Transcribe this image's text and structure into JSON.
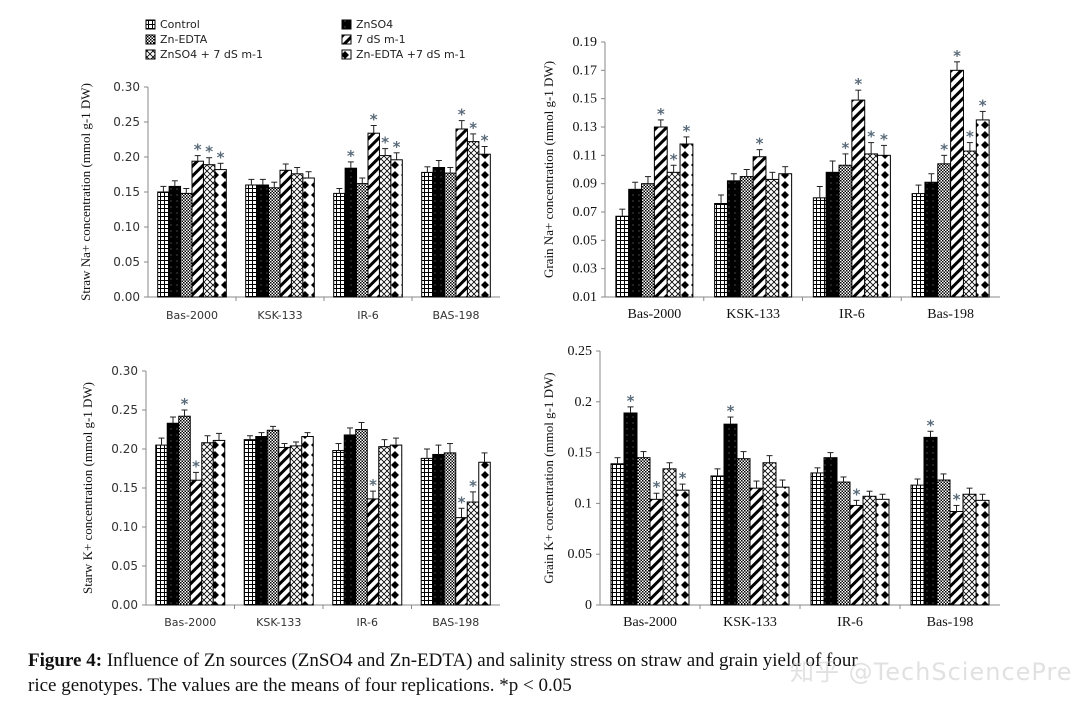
{
  "legend": {
    "items": [
      {
        "label": "Control",
        "pattern": "grid"
      },
      {
        "label": "ZnSO4",
        "pattern": "dotted-black"
      },
      {
        "label": "Zn-EDTA",
        "pattern": "checker"
      },
      {
        "label": "7 dS m-1",
        "pattern": "diagonal"
      },
      {
        "label": "ZnSO4 + 7 dS m-1",
        "pattern": "crosshatch"
      },
      {
        "label": "Zn-EDTA +7 dS m-1",
        "pattern": "diamond"
      }
    ]
  },
  "chart_data": [
    {
      "id": "straw-na",
      "type": "bar",
      "ylabel": "Straw Na+ concentration (mmol g-1 DW)",
      "categories": [
        "Bas-2000",
        "KSK-133",
        "IR-6",
        "BAS-198"
      ],
      "ylim": [
        0,
        0.3
      ],
      "yticks": [
        "0.00",
        "0.05",
        "0.10",
        "0.15",
        "0.20",
        "0.25",
        "0.30"
      ],
      "series": [
        {
          "name": "Control",
          "values": [
            0.15,
            0.16,
            0.148,
            0.178
          ],
          "errors": [
            0.008,
            0.008,
            0.007,
            0.008
          ],
          "sig": [
            false,
            false,
            false,
            false
          ]
        },
        {
          "name": "ZnSO4",
          "values": [
            0.158,
            0.16,
            0.184,
            0.185
          ],
          "errors": [
            0.008,
            0.008,
            0.009,
            0.01
          ],
          "sig": [
            false,
            false,
            true,
            false
          ]
        },
        {
          "name": "Zn-EDTA",
          "values": [
            0.148,
            0.156,
            0.162,
            0.177
          ],
          "errors": [
            0.007,
            0.008,
            0.008,
            0.008
          ],
          "sig": [
            false,
            false,
            false,
            false
          ]
        },
        {
          "name": "7 dS m-1",
          "values": [
            0.194,
            0.181,
            0.234,
            0.24
          ],
          "errors": [
            0.008,
            0.009,
            0.011,
            0.012
          ],
          "sig": [
            true,
            false,
            true,
            true
          ]
        },
        {
          "name": "ZnSO4 + 7 dS m-1",
          "values": [
            0.189,
            0.176,
            0.202,
            0.222
          ],
          "errors": [
            0.01,
            0.009,
            0.01,
            0.011
          ],
          "sig": [
            true,
            false,
            true,
            true
          ]
        },
        {
          "name": "Zn-EDTA +7 dS m-1",
          "values": [
            0.182,
            0.17,
            0.196,
            0.204
          ],
          "errors": [
            0.009,
            0.009,
            0.01,
            0.011
          ],
          "sig": [
            true,
            false,
            true,
            true
          ]
        }
      ]
    },
    {
      "id": "grain-na",
      "type": "bar",
      "ylabel": "Grain Na+ concentration (mmol g-1 DW)",
      "categories": [
        "Bas-2000",
        "KSK-133",
        "IR-6",
        "Bas-198"
      ],
      "ylim": [
        0.01,
        0.19
      ],
      "yticks": [
        "0.01",
        "0.03",
        "0.05",
        "0.07",
        "0.09",
        "0.11",
        "0.13",
        "0.15",
        "0.17",
        "0.19"
      ],
      "series": [
        {
          "name": "Control",
          "values": [
            0.067,
            0.076,
            0.08,
            0.083
          ],
          "errors": [
            0.005,
            0.006,
            0.008,
            0.006
          ],
          "sig": [
            false,
            false,
            false,
            false
          ]
        },
        {
          "name": "ZnSO4",
          "values": [
            0.086,
            0.092,
            0.098,
            0.091
          ],
          "errors": [
            0.005,
            0.005,
            0.008,
            0.006
          ],
          "sig": [
            false,
            false,
            false,
            false
          ]
        },
        {
          "name": "Zn-EDTA",
          "values": [
            0.09,
            0.095,
            0.103,
            0.104
          ],
          "errors": [
            0.005,
            0.005,
            0.008,
            0.006
          ],
          "sig": [
            false,
            false,
            true,
            true
          ]
        },
        {
          "name": "7 dS m-1",
          "values": [
            0.13,
            0.109,
            0.149,
            0.17
          ],
          "errors": [
            0.005,
            0.005,
            0.007,
            0.006
          ],
          "sig": [
            true,
            true,
            true,
            true
          ]
        },
        {
          "name": "ZnSO4 + 7 dS m-1",
          "values": [
            0.098,
            0.093,
            0.111,
            0.113
          ],
          "errors": [
            0.005,
            0.005,
            0.008,
            0.006
          ],
          "sig": [
            true,
            false,
            true,
            true
          ]
        },
        {
          "name": "Zn-EDTA +7 dS m-1",
          "values": [
            0.118,
            0.097,
            0.11,
            0.135
          ],
          "errors": [
            0.005,
            0.005,
            0.007,
            0.006
          ],
          "sig": [
            true,
            false,
            true,
            true
          ]
        }
      ]
    },
    {
      "id": "straw-k",
      "type": "bar",
      "ylabel": "Starw K+ concentration (mmol g-1 DW)",
      "categories": [
        "Bas-2000",
        "KSK-133",
        "IR-6",
        "BAS-198"
      ],
      "ylim": [
        0,
        0.3
      ],
      "yticks": [
        "0.00",
        "0.05",
        "0.10",
        "0.15",
        "0.20",
        "0.25",
        "0.30"
      ],
      "series": [
        {
          "name": "Control",
          "values": [
            0.205,
            0.212,
            0.198,
            0.188
          ],
          "errors": [
            0.009,
            0.005,
            0.009,
            0.012
          ],
          "sig": [
            false,
            false,
            false,
            false
          ]
        },
        {
          "name": "ZnSO4",
          "values": [
            0.233,
            0.216,
            0.218,
            0.193
          ],
          "errors": [
            0.008,
            0.005,
            0.009,
            0.012
          ],
          "sig": [
            false,
            false,
            false,
            false
          ]
        },
        {
          "name": "Zn-EDTA",
          "values": [
            0.242,
            0.224,
            0.225,
            0.195
          ],
          "errors": [
            0.008,
            0.005,
            0.009,
            0.012
          ],
          "sig": [
            true,
            false,
            false,
            false
          ]
        },
        {
          "name": "7 dS m-1",
          "values": [
            0.16,
            0.202,
            0.136,
            0.112
          ],
          "errors": [
            0.01,
            0.005,
            0.01,
            0.012
          ],
          "sig": [
            true,
            false,
            true,
            true
          ]
        },
        {
          "name": "ZnSO4 + 7 dS m-1",
          "values": [
            0.208,
            0.204,
            0.203,
            0.132
          ],
          "errors": [
            0.009,
            0.005,
            0.009,
            0.013
          ],
          "sig": [
            false,
            false,
            false,
            true
          ]
        },
        {
          "name": "Zn-EDTA +7 dS m-1",
          "values": [
            0.211,
            0.216,
            0.205,
            0.183
          ],
          "errors": [
            0.009,
            0.005,
            0.009,
            0.012
          ],
          "sig": [
            false,
            false,
            false,
            false
          ]
        }
      ]
    },
    {
      "id": "grain-k",
      "type": "bar",
      "ylabel": "Grain K+ concentration (mmol g-1 DW)",
      "categories": [
        "Bas-2000",
        "KSK-133",
        "IR-6",
        "Bas-198"
      ],
      "ylim": [
        0,
        0.25
      ],
      "yticks": [
        "0",
        "0.05",
        "0.1",
        "0.15",
        "0.2",
        "0.25"
      ],
      "series": [
        {
          "name": "Control",
          "values": [
            0.139,
            0.127,
            0.13,
            0.118
          ],
          "errors": [
            0.006,
            0.007,
            0.005,
            0.006
          ],
          "sig": [
            false,
            false,
            false,
            false
          ]
        },
        {
          "name": "ZnSO4",
          "values": [
            0.189,
            0.178,
            0.145,
            0.165
          ],
          "errors": [
            0.006,
            0.007,
            0.005,
            0.006
          ],
          "sig": [
            true,
            true,
            false,
            true
          ]
        },
        {
          "name": "Zn-EDTA",
          "values": [
            0.145,
            0.144,
            0.121,
            0.123
          ],
          "errors": [
            0.006,
            0.007,
            0.005,
            0.006
          ],
          "sig": [
            false,
            false,
            false,
            false
          ]
        },
        {
          "name": "7 dS m-1",
          "values": [
            0.104,
            0.115,
            0.098,
            0.092
          ],
          "errors": [
            0.006,
            0.007,
            0.005,
            0.006
          ],
          "sig": [
            true,
            false,
            true,
            true
          ]
        },
        {
          "name": "ZnSO4 + 7 dS m-1",
          "values": [
            0.134,
            0.14,
            0.107,
            0.109
          ],
          "errors": [
            0.006,
            0.007,
            0.005,
            0.006
          ],
          "sig": [
            false,
            false,
            false,
            false
          ]
        },
        {
          "name": "Zn-EDTA +7 dS m-1",
          "values": [
            0.113,
            0.116,
            0.104,
            0.103
          ],
          "errors": [
            0.006,
            0.007,
            0.005,
            0.006
          ],
          "sig": [
            true,
            false,
            false,
            false
          ]
        }
      ]
    }
  ],
  "caption": {
    "label": "Figure 4:",
    "text_line1": "Influence of Zn sources (ZnSO4 and Zn-EDTA) and salinity stress on straw and grain yield of four",
    "text_line2": "rice genotypes. The values are the means of four replications. *p < 0.05"
  },
  "watermark": "知乎 @TechSciencePress"
}
